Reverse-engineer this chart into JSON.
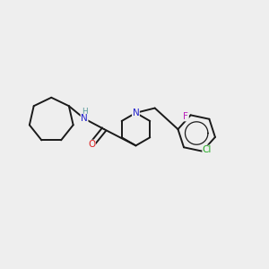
{
  "background_color": "#eeeeee",
  "bond_color": "#1a1a1a",
  "atom_colors": {
    "N": "#2222cc",
    "O": "#dd2222",
    "Cl": "#22aa22",
    "F": "#bb22bb",
    "H": "#559999",
    "C": "#1a1a1a"
  },
  "figsize": [
    3.0,
    3.0
  ],
  "dpi": 100,
  "lw": 1.4,
  "fontsize": 7.5
}
